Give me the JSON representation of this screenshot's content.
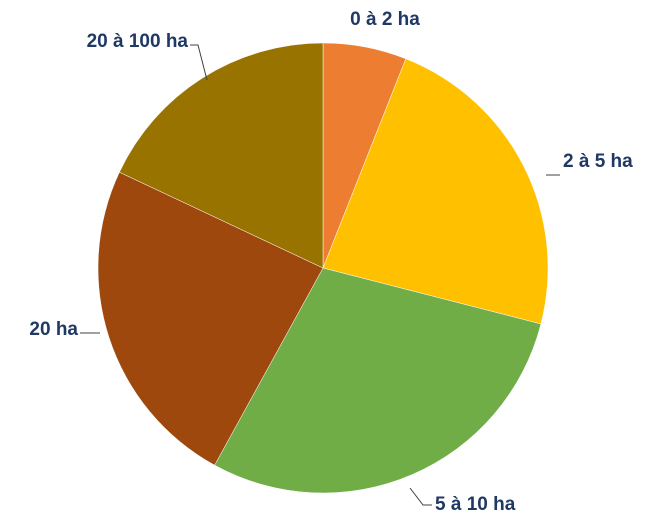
{
  "chart_data": {
    "type": "pie",
    "categories": [
      "0 à 2 ha",
      "2 à 5 ha",
      "5 à 10 ha",
      "20 ha",
      "20 à 100 ha"
    ],
    "values": [
      6,
      23,
      29,
      24,
      18
    ],
    "colors": [
      "#ed7d31",
      "#ffc000",
      "#70ad47",
      "#9e480e",
      "#997300"
    ]
  }
}
